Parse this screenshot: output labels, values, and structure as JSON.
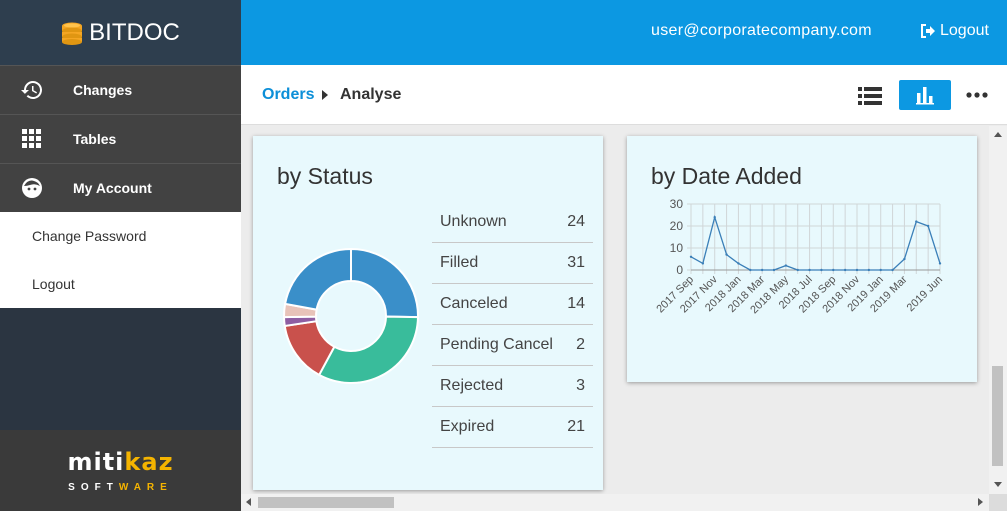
{
  "app": {
    "brand": "BITDOC",
    "brand_icon": "coin-stack-icon"
  },
  "sidebar": {
    "items": [
      {
        "label": "Changes",
        "icon": "history-icon"
      },
      {
        "label": "Tables",
        "icon": "grid-icon"
      },
      {
        "label": "My Account",
        "icon": "face-icon"
      }
    ],
    "submenu": [
      {
        "label": "Change Password"
      },
      {
        "label": "Logout"
      }
    ],
    "footer": {
      "logo_a": "miti",
      "logo_b": "kaz",
      "tag_a": "SOFT",
      "tag_b": "WARE"
    }
  },
  "topbar": {
    "user_email": "user@corporatecompany.com",
    "logout_label": "Logout"
  },
  "breadcrumb": {
    "root": "Orders",
    "current": "Analyse"
  },
  "colors": {
    "primary": "#0c98e2",
    "card_bg": "#e8f9fd",
    "sidebar": "#424242"
  },
  "status_card": {
    "title": "by Status",
    "rows": [
      {
        "label": "Unknown",
        "count": "24"
      },
      {
        "label": "Filled",
        "count": "31"
      },
      {
        "label": "Canceled",
        "count": "14"
      },
      {
        "label": "Pending Cancel",
        "count": "2"
      },
      {
        "label": "Rejected",
        "count": "3"
      },
      {
        "label": "Expired",
        "count": "21"
      }
    ]
  },
  "date_card": {
    "title": "by Date Added"
  },
  "chart_data": [
    {
      "type": "pie",
      "donut": true,
      "categories": [
        "Unknown",
        "Filled",
        "Canceled",
        "Pending Cancel",
        "Rejected",
        "Expired"
      ],
      "values": [
        24,
        31,
        14,
        2,
        3,
        21
      ],
      "colors": [
        "#3a8fc9",
        "#39bc9b",
        "#c9514c",
        "#8e5ea2",
        "#e8c3b9",
        "#3a8fc9"
      ]
    },
    {
      "type": "line",
      "x": [
        "2017 Sep",
        "2017 Oct",
        "2017 Nov",
        "2017 Dec",
        "2018 Jan",
        "2018 Feb",
        "2018 Mar",
        "2018 Apr",
        "2018 May",
        "2018 Jun",
        "2018 Jul",
        "2018 Aug",
        "2018 Sep",
        "2018 Oct",
        "2018 Nov",
        "2018 Dec",
        "2019 Jan",
        "2019 Feb",
        "2019 Mar",
        "2019 Apr",
        "2019 May",
        "2019 Jun"
      ],
      "xtick_labels": [
        "2017 Sep",
        "2017 Nov",
        "2018 Jan",
        "2018 Mar",
        "2018 May",
        "2018 Jul",
        "2018 Sep",
        "2018 Nov",
        "2019 Jan",
        "2019 Mar",
        "2019 Jun"
      ],
      "xtick_indices": [
        0,
        2,
        4,
        6,
        8,
        10,
        12,
        14,
        16,
        18,
        21
      ],
      "values": [
        6,
        3,
        24,
        7,
        3,
        0,
        0,
        0,
        2,
        0,
        0,
        0,
        0,
        0,
        0,
        0,
        0,
        0,
        5,
        22,
        20,
        3
      ],
      "yticks": [
        0,
        10,
        20,
        30
      ],
      "ylim": [
        0,
        30
      ],
      "grid": true,
      "color": "#3a7fb8"
    }
  ]
}
